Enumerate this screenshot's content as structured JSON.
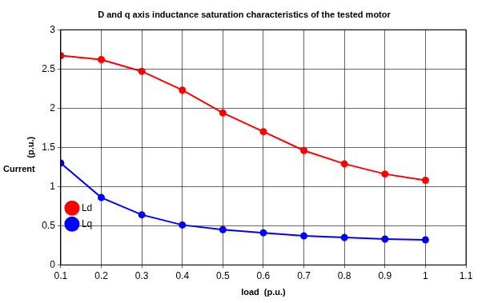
{
  "chart_data": {
    "type": "line",
    "title": "D and q axis inductance saturation characteristics of the tested motor",
    "x_label": "load  (p.u.)",
    "y_label": "(p.u.)",
    "annotations": [
      "Current"
    ],
    "x": [
      0.1,
      0.2,
      0.3,
      0.4,
      0.5,
      0.6,
      0.7,
      0.8,
      0.9,
      1.0
    ],
    "series": [
      {
        "name": "Ld",
        "color": "#ff0000",
        "marker": "circle",
        "line_style": "solid",
        "values": [
          2.67,
          2.62,
          2.47,
          2.23,
          1.94,
          1.7,
          1.46,
          1.29,
          1.16,
          1.08
        ]
      },
      {
        "name": "Lq",
        "color": "#0000ff",
        "marker": "circle",
        "line_style": "solid",
        "values": [
          1.3,
          0.86,
          0.64,
          0.51,
          0.45,
          0.41,
          0.37,
          0.35,
          0.33,
          0.32
        ]
      }
    ],
    "xlim": [
      0.1,
      1.1
    ],
    "xticks": [
      0.1,
      0.2,
      0.3,
      0.4,
      0.5,
      0.6,
      0.7,
      0.8,
      0.9,
      1,
      1.1
    ],
    "ylim": [
      0,
      3
    ],
    "yticks": [
      0,
      0.5,
      1,
      1.5,
      2,
      2.5,
      3
    ],
    "grid": true,
    "legend": "northeast"
  }
}
